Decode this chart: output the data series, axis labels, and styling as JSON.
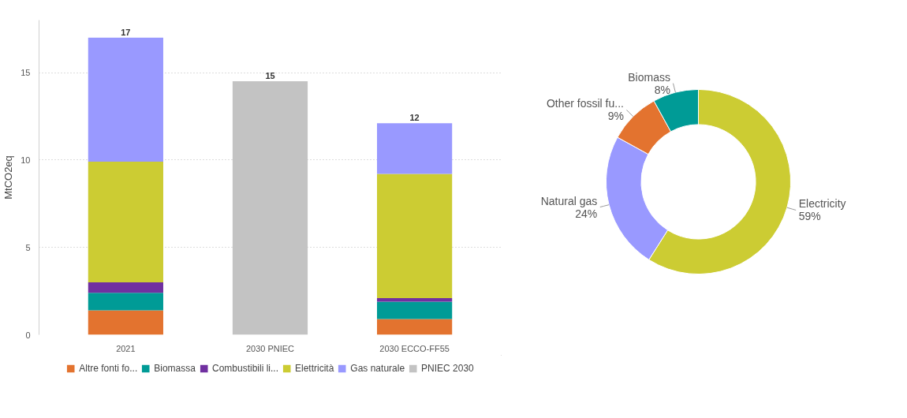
{
  "chart_data": [
    {
      "type": "bar",
      "stacked": true,
      "ylabel": "MtCO2eq",
      "categories": [
        "2021",
        "2030 PNIEC",
        "2030 ECCO-FF55"
      ],
      "ylim": [
        0,
        18
      ],
      "yticks": [
        0,
        5,
        10,
        15
      ],
      "grid": "y",
      "legend": "bottom",
      "totals": [
        "17",
        "15",
        "12"
      ],
      "series": [
        {
          "name": "Altre fonti fo...",
          "color": "#e3732f",
          "values": [
            1.4,
            null,
            0.9
          ]
        },
        {
          "name": "Biomassa",
          "color": "#009b96",
          "values": [
            1.0,
            null,
            1.0
          ]
        },
        {
          "name": "Combustibili li...",
          "color": "#7030a0",
          "values": [
            0.6,
            null,
            0.2
          ]
        },
        {
          "name": "Elettricità",
          "color": "#cccc33",
          "values": [
            6.9,
            null,
            7.1
          ]
        },
        {
          "name": "Gas naturale",
          "color": "#9999ff",
          "values": [
            7.1,
            null,
            2.9
          ]
        },
        {
          "name": "PNIEC 2030",
          "color": "#c3c3c3",
          "values": [
            null,
            14.5,
            null
          ]
        }
      ]
    },
    {
      "type": "donut",
      "categories": [
        "Electricity",
        "Natural gas",
        "Other fossil fu...",
        "Biomass"
      ],
      "values": [
        59,
        24,
        9,
        8
      ],
      "colors": [
        "#cccc33",
        "#9999ff",
        "#e3732f",
        "#009b96"
      ],
      "value_labels": [
        "59%",
        "24%",
        "9%",
        "8%"
      ]
    }
  ]
}
